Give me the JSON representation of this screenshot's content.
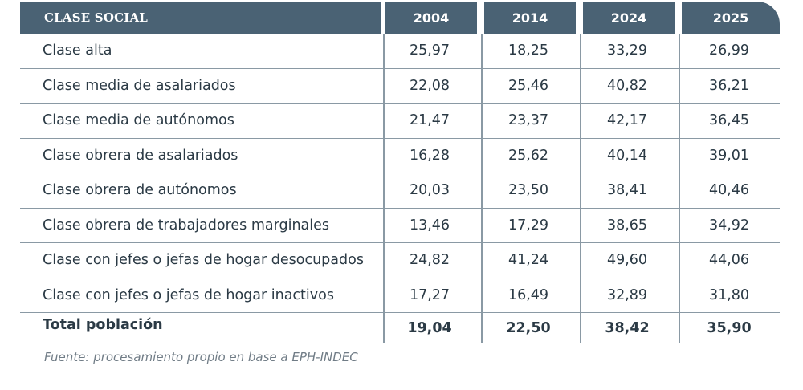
{
  "table": {
    "headers": [
      "CLASE SOCIAL",
      "2004",
      "2014",
      "2024",
      "2025"
    ],
    "rows": [
      {
        "label": "Clase alta",
        "values": [
          "25,97",
          "18,25",
          "33,29",
          "26,99"
        ]
      },
      {
        "label": "Clase media de asalariados",
        "values": [
          "22,08",
          "25,46",
          "40,82",
          "36,21"
        ]
      },
      {
        "label": "Clase media de autónomos",
        "values": [
          "21,47",
          "23,37",
          "42,17",
          "36,45"
        ]
      },
      {
        "label": "Clase obrera de asalariados",
        "values": [
          "16,28",
          "25,62",
          "40,14",
          "39,01"
        ]
      },
      {
        "label": "Clase obrera de autónomos",
        "values": [
          "20,03",
          "23,50",
          "38,41",
          "40,46"
        ]
      },
      {
        "label": "Clase obrera de trabajadores marginales",
        "values": [
          "13,46",
          "17,29",
          "38,65",
          "34,92"
        ]
      },
      {
        "label": "Clase con jefes o jefas de hogar desocupados",
        "values": [
          "24,82",
          "41,24",
          "49,60",
          "44,06"
        ]
      },
      {
        "label": "Clase con jefes o jefas de hogar inactivos",
        "values": [
          "17,27",
          "16,49",
          "32,89",
          "31,80"
        ]
      }
    ],
    "total": {
      "label": "Total población",
      "values": [
        "19,04",
        "22,50",
        "38,42",
        "35,90"
      ]
    }
  },
  "source": "Fuente: procesamiento propio en base a EPH-INDEC",
  "colors": {
    "header_bg": "#4a6274",
    "header_text": "#ffffff",
    "rule": "#8a99a4",
    "text": "#2b3a45"
  }
}
